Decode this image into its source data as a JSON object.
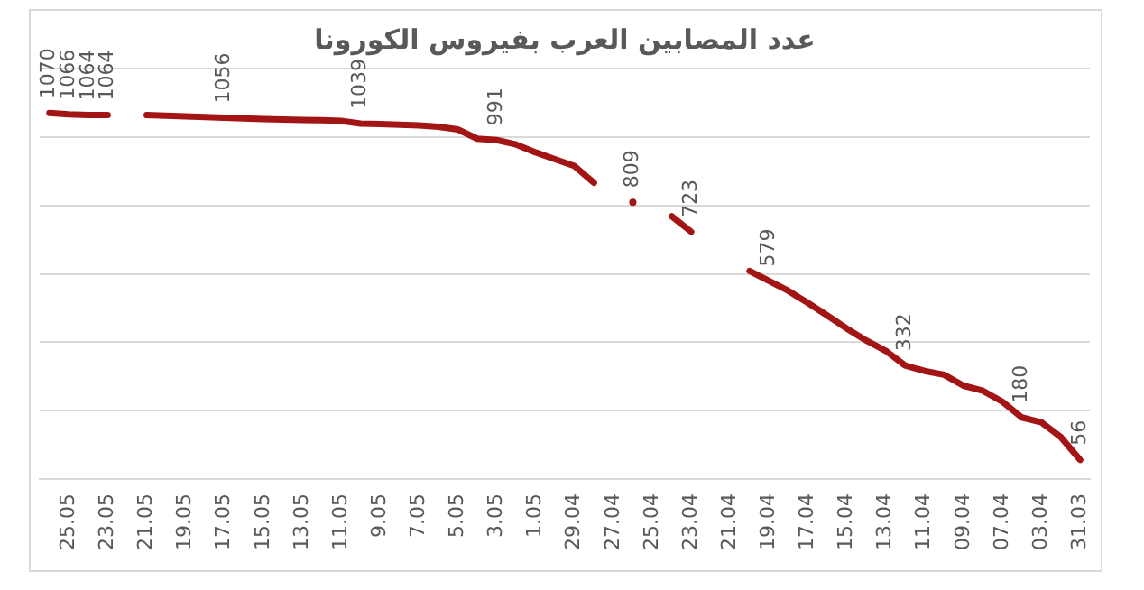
{
  "chart_data": {
    "type": "line",
    "title": "عدد المصابين العرب بفيروس الكورونا",
    "categories": [
      null,
      "25.05",
      null,
      "23.05",
      null,
      "21.05",
      null,
      "19.05",
      null,
      "17.05",
      null,
      "15.05",
      null,
      "13.05",
      null,
      "11.05",
      null,
      "9.05",
      null,
      "7.05",
      null,
      "5.05",
      null,
      "3.05",
      null,
      "1.05",
      null,
      "29.04",
      null,
      "27.04",
      null,
      "25.04",
      null,
      "23.04",
      null,
      "21.04",
      null,
      "19.04",
      null,
      "17.04",
      null,
      "15.04",
      null,
      "13.04",
      null,
      "11.04",
      null,
      "09.04",
      null,
      "07.04",
      null,
      "03.04",
      null,
      "31.03"
    ],
    "series": [
      {
        "color": "#a31515",
        "values": [
          1070,
          1066,
          1064,
          1064,
          null,
          1064,
          1062,
          1060,
          1058,
          1056,
          1054,
          1052,
          1051,
          1050,
          1049,
          1047,
          1039,
          1038,
          1036,
          1034,
          1030,
          1022,
          995,
          991,
          978,
          955,
          935,
          915,
          866,
          null,
          809,
          null,
          768,
          723,
          null,
          null,
          608,
          579,
          550,
          515,
          478,
          440,
          405,
          375,
          332,
          316,
          305,
          273,
          258,
          226,
          180,
          166,
          123,
          56
        ],
        "value_labels": [
          "1070",
          "1066",
          "1064",
          "1064",
          null,
          null,
          null,
          null,
          null,
          "1056",
          null,
          null,
          null,
          null,
          null,
          null,
          "1039",
          null,
          null,
          null,
          null,
          null,
          null,
          "991",
          null,
          null,
          null,
          null,
          null,
          null,
          "809",
          null,
          null,
          "723",
          null,
          null,
          null,
          "579",
          null,
          null,
          null,
          null,
          null,
          null,
          "332",
          null,
          null,
          null,
          null,
          null,
          "180",
          null,
          null,
          "56"
        ]
      }
    ],
    "ylim": [
      0,
      1200
    ],
    "yticks": [
      {
        "value": 0,
        "label": null
      },
      {
        "value": 200,
        "label": null
      },
      {
        "value": 400,
        "label": null
      },
      {
        "value": 600,
        "label": null
      },
      {
        "value": 800,
        "label": null
      },
      {
        "value": 1000,
        "label": null
      },
      {
        "value": 1200,
        "label": null
      }
    ],
    "grid": "y",
    "tick_labels": "x"
  }
}
